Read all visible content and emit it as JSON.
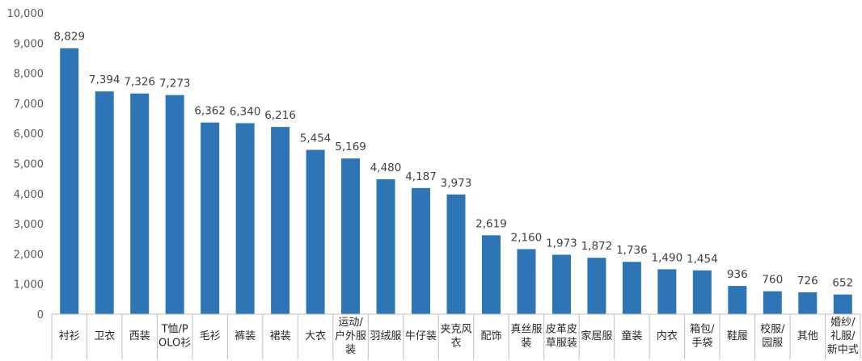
{
  "chart_data": {
    "type": "bar",
    "title": "",
    "xlabel": "",
    "ylabel": "",
    "ylim": [
      0,
      10000
    ],
    "yticks": [
      "0",
      "1,000",
      "2,000",
      "3,000",
      "4,000",
      "5,000",
      "6,000",
      "7,000",
      "8,000",
      "9,000",
      "10,000"
    ],
    "grid": false,
    "legend": "none",
    "bar_color": "#2e75b6",
    "categories": [
      [
        "衬衫"
      ],
      [
        "卫衣"
      ],
      [
        "西装"
      ],
      [
        "T恤/P",
        "OLO衫"
      ],
      [
        "毛衫"
      ],
      [
        "裤装"
      ],
      [
        "裙装"
      ],
      [
        "大衣"
      ],
      [
        "运动/",
        "户外服",
        "装"
      ],
      [
        "羽绒服"
      ],
      [
        "牛仔装"
      ],
      [
        "夹克风",
        "衣"
      ],
      [
        "配饰"
      ],
      [
        "真丝服",
        "装"
      ],
      [
        "皮革皮",
        "草服装"
      ],
      [
        "家居服"
      ],
      [
        "童装"
      ],
      [
        "内衣"
      ],
      [
        "箱包/",
        "手袋"
      ],
      [
        "鞋履"
      ],
      [
        "校服/",
        "园服"
      ],
      [
        "其他"
      ],
      [
        "婚纱/",
        "礼服/",
        "新中式"
      ]
    ],
    "values": [
      8829,
      7394,
      7326,
      7273,
      6362,
      6340,
      6216,
      5454,
      5169,
      4480,
      4187,
      3973,
      2619,
      2160,
      1973,
      1872,
      1736,
      1490,
      1454,
      936,
      760,
      726,
      652
    ],
    "data_labels": [
      "8,829",
      "7,394",
      "7,326",
      "7,273",
      "6,362",
      "6,340",
      "6,216",
      "5,454",
      "5,169",
      "4,480",
      "4,187",
      "3,973",
      "2,619",
      "2,160",
      "1,973",
      "1,872",
      "1,736",
      "1,490",
      "1,454",
      "936",
      "760",
      "726",
      "652"
    ]
  }
}
